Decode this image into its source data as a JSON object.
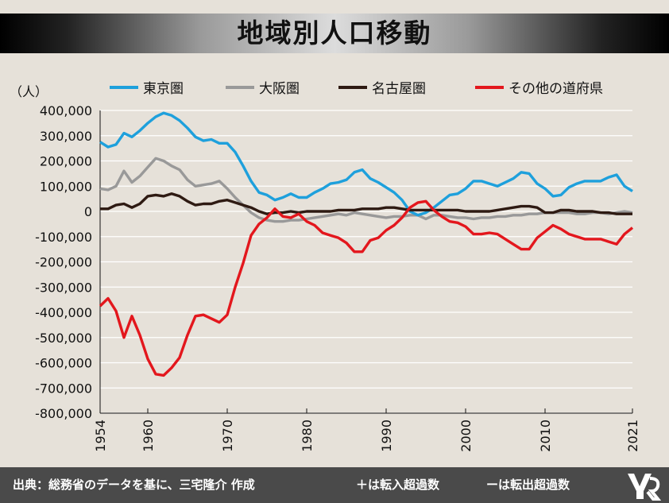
{
  "title": "地域別人口移動",
  "footer": {
    "source": "出典：総務省のデータを基に、三宅隆介 作成",
    "note_plus": "＋は転入超過数",
    "note_minus": "ーは転出超過数"
  },
  "chart_data": {
    "type": "line",
    "title": "地域別人口移動",
    "ylabel": "（人）",
    "xlabel": "",
    "ylim": [
      -800000,
      400000
    ],
    "xlim": [
      1954,
      2021
    ],
    "grid": true,
    "legend_position": "top",
    "y_ticks": [
      {
        "value": 400000,
        "label": "400,000"
      },
      {
        "value": 300000,
        "label": "300,000"
      },
      {
        "value": 200000,
        "label": "200,000"
      },
      {
        "value": 100000,
        "label": "100,000"
      },
      {
        "value": 0,
        "label": "0"
      },
      {
        "value": -100000,
        "label": "-100,000"
      },
      {
        "value": -200000,
        "label": "-200,000"
      },
      {
        "value": -300000,
        "label": "-300,000"
      },
      {
        "value": -400000,
        "label": "-400,000"
      },
      {
        "value": -500000,
        "label": "-500,000"
      },
      {
        "value": -600000,
        "label": "-600,000"
      },
      {
        "value": -700000,
        "label": "-700,000"
      },
      {
        "value": -800000,
        "label": "-800,000"
      }
    ],
    "x_ticks": [
      {
        "value": 1954,
        "label": "1954"
      },
      {
        "value": 1960,
        "label": "1960"
      },
      {
        "value": 1970,
        "label": "1970"
      },
      {
        "value": 1980,
        "label": "1980"
      },
      {
        "value": 1990,
        "label": "1990"
      },
      {
        "value": 2000,
        "label": "2000"
      },
      {
        "value": 2010,
        "label": "2010"
      },
      {
        "value": 2021,
        "label": "2021"
      }
    ],
    "x": [
      1954,
      1955,
      1956,
      1957,
      1958,
      1959,
      1960,
      1961,
      1962,
      1963,
      1964,
      1965,
      1966,
      1967,
      1968,
      1969,
      1970,
      1971,
      1972,
      1973,
      1974,
      1975,
      1976,
      1977,
      1978,
      1979,
      1980,
      1981,
      1982,
      1983,
      1984,
      1985,
      1986,
      1987,
      1988,
      1989,
      1990,
      1991,
      1992,
      1993,
      1994,
      1995,
      1996,
      1997,
      1998,
      1999,
      2000,
      2001,
      2002,
      2003,
      2004,
      2005,
      2006,
      2007,
      2008,
      2009,
      2010,
      2011,
      2012,
      2013,
      2014,
      2015,
      2016,
      2017,
      2018,
      2019,
      2020,
      2021
    ],
    "series": [
      {
        "name": "東京圏",
        "color": "#1ea0dc",
        "values": [
          275000,
          255000,
          265000,
          310000,
          295000,
          320000,
          350000,
          375000,
          390000,
          380000,
          360000,
          330000,
          295000,
          280000,
          285000,
          270000,
          270000,
          235000,
          180000,
          120000,
          75000,
          65000,
          45000,
          55000,
          70000,
          55000,
          55000,
          75000,
          90000,
          110000,
          115000,
          125000,
          155000,
          165000,
          130000,
          115000,
          95000,
          75000,
          45000,
          0,
          -15000,
          -5000,
          15000,
          40000,
          65000,
          70000,
          90000,
          120000,
          120000,
          110000,
          100000,
          115000,
          130000,
          155000,
          150000,
          110000,
          90000,
          60000,
          65000,
          95000,
          110000,
          120000,
          120000,
          120000,
          135000,
          145000,
          100000,
          80000
        ]
      },
      {
        "name": "大阪圏",
        "color": "#999999",
        "values": [
          90000,
          85000,
          100000,
          160000,
          115000,
          140000,
          175000,
          210000,
          200000,
          180000,
          165000,
          125000,
          100000,
          105000,
          110000,
          120000,
          90000,
          55000,
          25000,
          -5000,
          -25000,
          -35000,
          -40000,
          -40000,
          -35000,
          -35000,
          -30000,
          -25000,
          -20000,
          -15000,
          -10000,
          -15000,
          -5000,
          -10000,
          -15000,
          -20000,
          -25000,
          -20000,
          -20000,
          -15000,
          -15000,
          -30000,
          -15000,
          -15000,
          -20000,
          -25000,
          -25000,
          -30000,
          -25000,
          -25000,
          -20000,
          -20000,
          -15000,
          -15000,
          -10000,
          -10000,
          -5000,
          -5000,
          -5000,
          -5000,
          -10000,
          -10000,
          -5000,
          -5000,
          -10000,
          -5000,
          0,
          -5000
        ]
      },
      {
        "name": "名古屋圏",
        "color": "#2e1a12",
        "values": [
          10000,
          10000,
          25000,
          30000,
          15000,
          30000,
          60000,
          65000,
          60000,
          70000,
          60000,
          40000,
          25000,
          30000,
          30000,
          40000,
          45000,
          35000,
          25000,
          15000,
          0,
          -10000,
          -5000,
          -5000,
          0,
          -5000,
          0,
          0,
          0,
          0,
          5000,
          5000,
          5000,
          10000,
          10000,
          10000,
          15000,
          15000,
          10000,
          5000,
          5000,
          5000,
          5000,
          5000,
          5000,
          5000,
          0,
          0,
          0,
          0,
          5000,
          10000,
          15000,
          20000,
          20000,
          15000,
          -5000,
          -5000,
          5000,
          5000,
          0,
          0,
          0,
          -5000,
          -5000,
          -10000,
          -10000,
          -10000
        ]
      },
      {
        "name": "その他の道府県",
        "color": "#e3171d",
        "values": [
          -375000,
          -345000,
          -395000,
          -500000,
          -415000,
          -490000,
          -585000,
          -645000,
          -650000,
          -620000,
          -580000,
          -490000,
          -415000,
          -410000,
          -425000,
          -440000,
          -410000,
          -300000,
          -205000,
          -95000,
          -50000,
          -25000,
          10000,
          -20000,
          -25000,
          -10000,
          -40000,
          -55000,
          -85000,
          -95000,
          -105000,
          -125000,
          -160000,
          -160000,
          -115000,
          -105000,
          -75000,
          -55000,
          -25000,
          15000,
          35000,
          40000,
          5000,
          -20000,
          -40000,
          -45000,
          -60000,
          -90000,
          -90000,
          -85000,
          -90000,
          -110000,
          -130000,
          -150000,
          -150000,
          -105000,
          -80000,
          -55000,
          -70000,
          -90000,
          -100000,
          -110000,
          -110000,
          -110000,
          -120000,
          -130000,
          -90000,
          -65000
        ]
      }
    ]
  }
}
